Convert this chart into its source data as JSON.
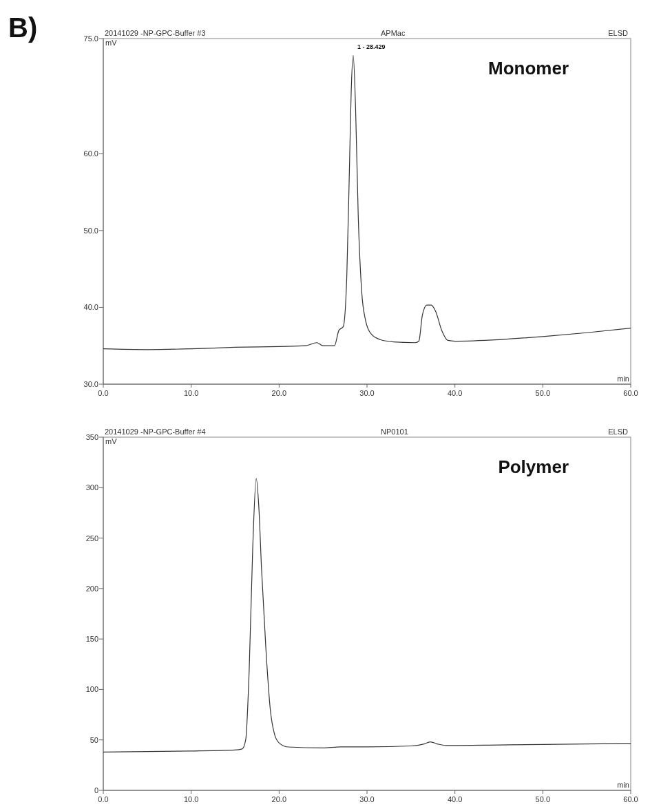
{
  "chart_data": [
    {
      "type": "line",
      "title": "20141029 -NP-GPC-Buffer #3",
      "subtitle": "APMac",
      "xlabel": "min",
      "ylabel": "mV",
      "annotations": [
        "ELSD",
        "Monomer",
        "B)",
        {
          "text": "1 - 28.429",
          "x": 28.429,
          "y": 72.8
        }
      ],
      "xlim": [
        0,
        60
      ],
      "xticks": [
        {
          "value": 0,
          "label": "0.0"
        },
        {
          "value": 10,
          "label": "10.0"
        },
        {
          "value": 20,
          "label": "20.0"
        },
        {
          "value": 30,
          "label": "30.0"
        },
        {
          "value": 40,
          "label": "40.0"
        },
        {
          "value": 50,
          "label": "50.0"
        },
        {
          "value": 60,
          "label": "60.0"
        }
      ],
      "ylim": [
        30,
        75
      ],
      "yticks": [
        {
          "value": 30,
          "label": "30.0"
        },
        {
          "value": 40,
          "label": "40.0"
        },
        {
          "value": 50,
          "label": "50.0"
        },
        {
          "value": 60,
          "label": "60.0"
        },
        {
          "value": 75,
          "label": "75.0"
        }
      ],
      "grid": false,
      "marker": "none",
      "line_style": "solid",
      "series": [
        {
          "color": "#333333",
          "x": [
            0,
            5,
            10,
            15,
            20,
            23,
            24.3,
            25,
            26.3,
            26.8,
            27.3,
            27.7,
            28,
            28.2,
            28.43,
            28.7,
            29,
            29.4,
            29.8,
            30.5,
            31.5,
            33,
            35.5,
            35.9,
            36.3,
            36.8,
            37.3,
            37.8,
            38.5,
            39.2,
            40,
            45,
            50,
            55,
            60
          ],
          "values": [
            34.6,
            34.5,
            34.6,
            34.8,
            34.9,
            35,
            35.4,
            35,
            35,
            37,
            37.5,
            44,
            58,
            68,
            72.8,
            66,
            52,
            42,
            38.5,
            36.5,
            35.8,
            35.5,
            35.4,
            35.6,
            39,
            40.3,
            40.3,
            39.5,
            37,
            35.7,
            35.6,
            35.8,
            36.2,
            36.7,
            37.3
          ]
        }
      ]
    },
    {
      "type": "line",
      "title": "20141029 -NP-GPC-Buffer #4",
      "subtitle": "NP0101",
      "xlabel": "min",
      "ylabel": "mV",
      "annotations": [
        "ELSD",
        "Polymer"
      ],
      "xlim": [
        0,
        60
      ],
      "xticks": [
        {
          "value": 0,
          "label": "0.0"
        },
        {
          "value": 10,
          "label": "10.0"
        },
        {
          "value": 20,
          "label": "20.0"
        },
        {
          "value": 30,
          "label": "30.0"
        },
        {
          "value": 40,
          "label": "40.0"
        },
        {
          "value": 50,
          "label": "50.0"
        },
        {
          "value": 60,
          "label": "60.0"
        }
      ],
      "ylim": [
        0,
        350
      ],
      "yticks": [
        0,
        50,
        100,
        150,
        200,
        250,
        300,
        350
      ],
      "grid": false,
      "marker": "none",
      "line_style": "solid",
      "series": [
        {
          "color": "#333333",
          "x": [
            0,
            5,
            10,
            15,
            15.8,
            16.2,
            16.6,
            17,
            17.4,
            17.7,
            18,
            18.5,
            19,
            19.5,
            20,
            21,
            25,
            27,
            30,
            35,
            36.5,
            37.2,
            38,
            39,
            45,
            50,
            60
          ],
          "values": [
            38,
            38.5,
            39,
            40,
            41,
            50,
            120,
            240,
            309,
            280,
            220,
            140,
            80,
            55,
            47,
            43,
            42,
            43,
            43,
            44,
            46,
            48,
            46,
            44.5,
            45,
            45.5,
            46.5
          ]
        }
      ]
    }
  ]
}
